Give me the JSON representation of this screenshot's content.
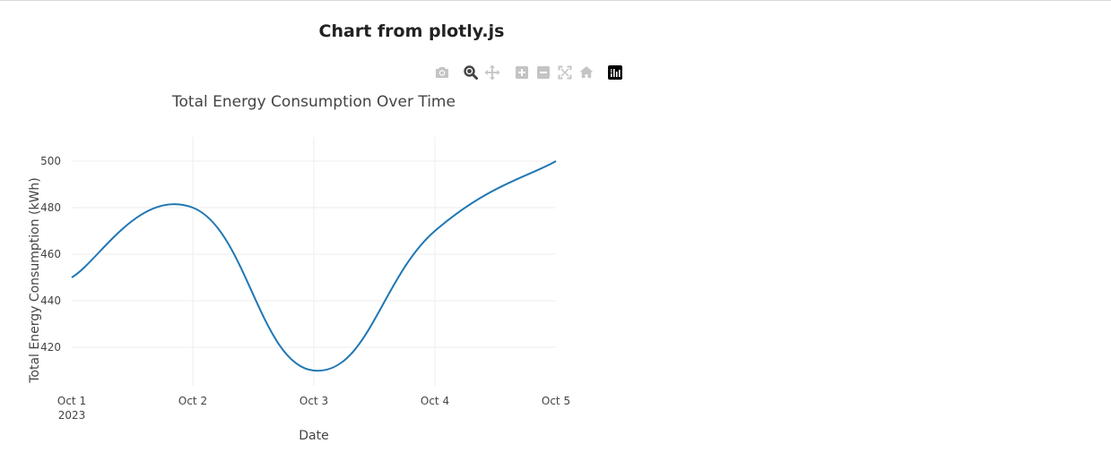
{
  "page": {
    "title": "Chart from plotly.js"
  },
  "modebar": {
    "buttons": [
      {
        "name": "camera-icon",
        "active": false
      },
      {
        "name": "zoom-icon",
        "active": true
      },
      {
        "name": "pan-icon",
        "active": false
      },
      {
        "name": "zoom-in-icon",
        "active": false
      },
      {
        "name": "zoom-out-icon",
        "active": false
      },
      {
        "name": "autoscale-icon",
        "active": false
      },
      {
        "name": "home-icon",
        "active": false
      },
      {
        "name": "plotly-logo-icon",
        "active": false
      }
    ],
    "colors": {
      "inactive": "#c4c4c4",
      "active": "#444444",
      "logo": "#000000"
    }
  },
  "chart_data": {
    "type": "line",
    "title": "Total Energy Consumption Over Time",
    "xlabel": "Date",
    "ylabel": "Total Energy Consumption (kWh)",
    "x": [
      "2023-10-01",
      "2023-10-02",
      "2023-10-03",
      "2023-10-04",
      "2023-10-05"
    ],
    "x_tick_labels": [
      {
        "label": "Oct 1",
        "sublabel": "2023"
      },
      {
        "label": "Oct 2",
        "sublabel": ""
      },
      {
        "label": "Oct 3",
        "sublabel": ""
      },
      {
        "label": "Oct 4",
        "sublabel": ""
      },
      {
        "label": "Oct 5",
        "sublabel": ""
      }
    ],
    "series": [
      {
        "values": [
          450,
          480,
          410,
          470,
          500
        ],
        "color": "#1f77b4",
        "shape": "spline"
      }
    ],
    "y_ticks": [
      420,
      440,
      460,
      480,
      500
    ],
    "ylim": [
      405,
      505
    ],
    "grid": true
  }
}
